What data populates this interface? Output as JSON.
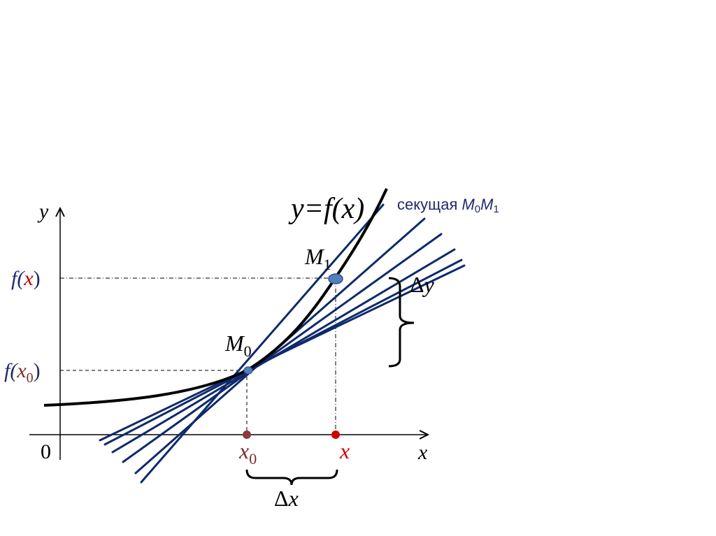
{
  "labels": {
    "y_axis": "y",
    "x_axis": "x",
    "origin": "0",
    "function": "y=f(x)",
    "secant_word": "секущая ",
    "m_letter": "M",
    "sub_0": "0",
    "sub_1": "1",
    "f_open": "f(",
    "close_paren": ")",
    "x_letter": "x",
    "delta": "Δ",
    "x0_letter": "x"
  },
  "colors": {
    "curve": "#000000",
    "secant_lines": "#0e2a6b",
    "point_fill": "#4f81bd",
    "point_stroke": "#2f528f",
    "x_red": "#c00000",
    "x0_brown": "#7b2c2c",
    "label_navy": "#1f2a6b",
    "axes": "#000000"
  }
}
